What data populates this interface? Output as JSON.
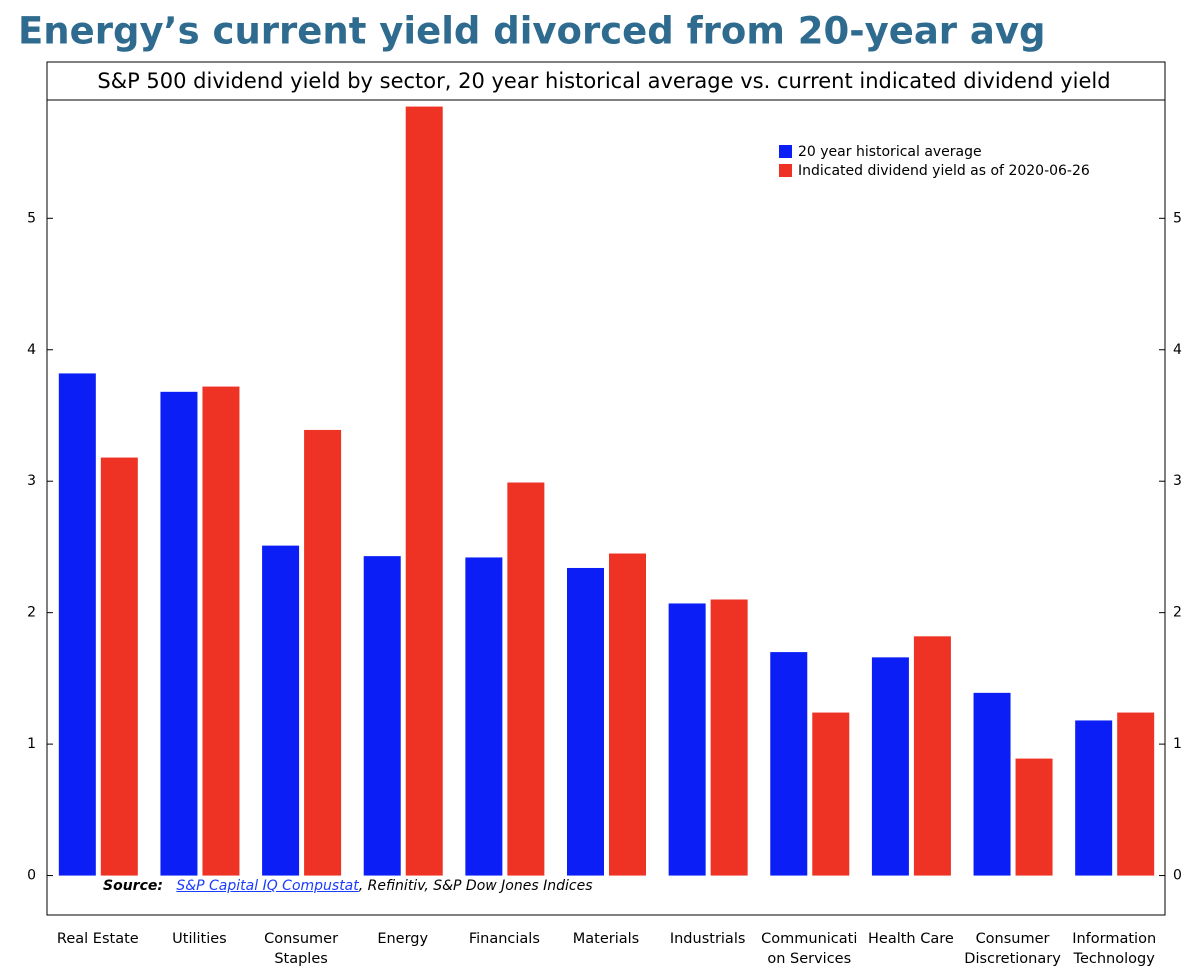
{
  "heading": "Energy’s current yield divorced from 20-year avg",
  "source": {
    "label": "Source:",
    "link": "S&P Capital IQ Compustat",
    "rest": ", Refinitiv, S&P Dow Jones Indices"
  },
  "chart_data": {
    "type": "bar",
    "title": "S&P 500 dividend yield by sector, 20 year historical average vs. current indicated dividend yield",
    "categories": [
      "Real Estate",
      "Utilities",
      "Consumer Staples",
      "Energy",
      "Financials",
      "Materials",
      "Industrials",
      "Communication Services",
      "Health Care",
      "Consumer Discretionary",
      "Information Technology"
    ],
    "series": [
      {
        "name": "20 year historical average",
        "color": "#0a1ef5",
        "values": [
          3.82,
          3.68,
          2.51,
          2.43,
          2.42,
          2.34,
          2.07,
          1.7,
          1.66,
          1.39,
          1.18
        ]
      },
      {
        "name": "Indicated dividend yield as of 2020-06-26",
        "color": "#ee3224",
        "values": [
          3.18,
          3.72,
          3.39,
          5.85,
          2.99,
          2.45,
          2.1,
          1.24,
          1.82,
          0.89,
          1.24
        ]
      }
    ],
    "ylim": [
      -0.3,
      5.9
    ],
    "yticks": [
      0,
      1,
      2,
      3,
      4,
      5
    ],
    "y_ticks_both_sides": true,
    "grid": false,
    "legend": "upper right"
  }
}
